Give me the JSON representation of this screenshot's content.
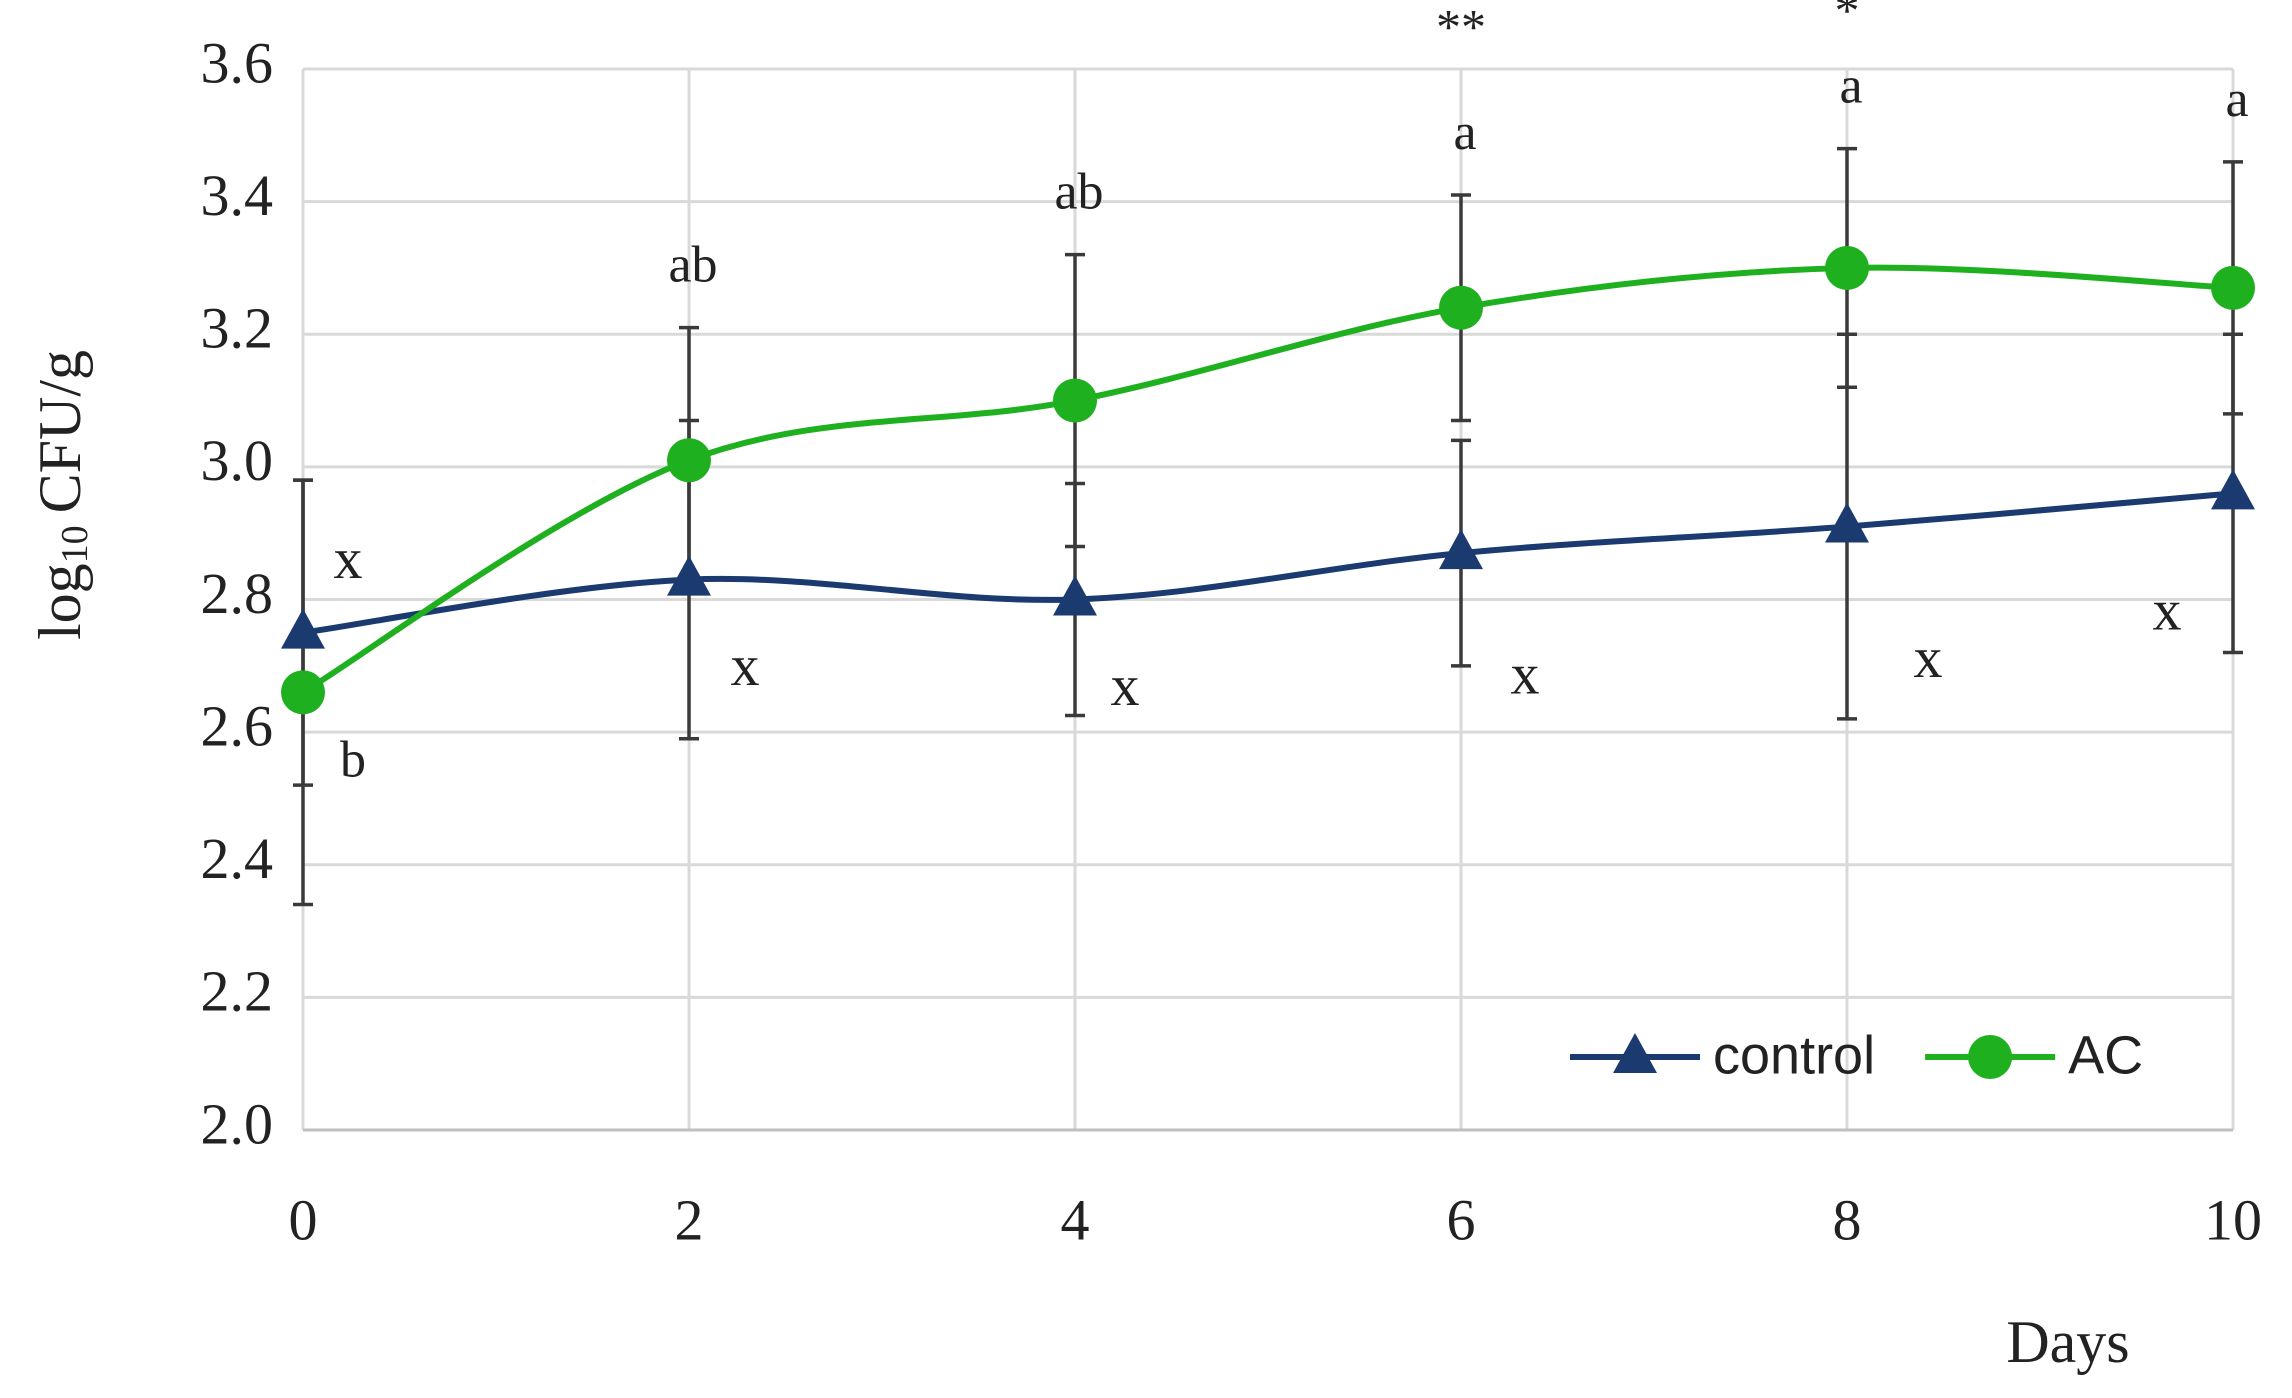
{
  "chart_data": {
    "type": "line",
    "y_label": {
      "prefix": "log",
      "subscript": "10",
      "text": "CFU/g"
    },
    "x_label": "Days",
    "x": [
      0,
      2,
      4,
      6,
      8,
      10
    ],
    "xlim": [
      0,
      10
    ],
    "xticks": [
      0,
      2,
      4,
      6,
      8,
      10
    ],
    "ylim": [
      2.0,
      3.6
    ],
    "yticks": [
      {
        "value": 2.0,
        "label": "2.0"
      },
      2.2,
      2.4,
      2.6,
      2.8,
      {
        "value": 3.0,
        "label": "3.0"
      },
      3.2,
      3.4,
      3.6
    ],
    "grid": true,
    "legend": "lower-right",
    "series": [
      {
        "name": "control",
        "color": "#1b3a6f",
        "marker": "triangle",
        "values": [
          2.75,
          2.83,
          2.8,
          2.87,
          2.91,
          2.96
        ],
        "errors": [
          0.23,
          0.24,
          0.175,
          0.17,
          0.29,
          0.24
        ],
        "letters": [
          "x",
          "x",
          "x",
          "x",
          "x",
          "x"
        ]
      },
      {
        "name": "AC",
        "color": "#1fb020",
        "marker": "circle",
        "values": [
          2.66,
          3.01,
          3.1,
          3.24,
          3.3,
          3.27
        ],
        "errors": [
          0.32,
          0.2,
          0.22,
          0.17,
          0.18,
          0.19
        ],
        "letters": [
          "b",
          "ab",
          "ab",
          "a",
          "a",
          "a"
        ]
      }
    ],
    "significance": [
      null,
      null,
      null,
      "**",
      "*",
      null
    ]
  }
}
